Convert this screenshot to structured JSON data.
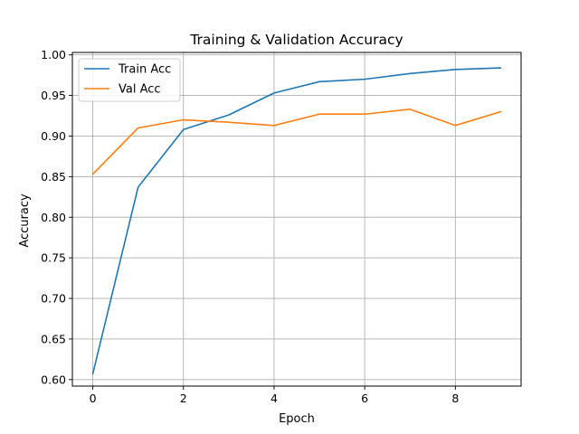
{
  "chart_data": {
    "type": "line",
    "title": "Training & Validation Accuracy",
    "xlabel": "Epoch",
    "ylabel": "Accuracy",
    "x": [
      0,
      1,
      2,
      3,
      4,
      5,
      6,
      7,
      8,
      9
    ],
    "xlim": [
      -0.45,
      9.45
    ],
    "ylim": [
      0.592,
      1.003
    ],
    "xticks": [
      0,
      2,
      4,
      6,
      8
    ],
    "yticks": [
      0.6,
      0.65,
      0.7,
      0.75,
      0.8,
      0.85,
      0.9,
      0.95,
      1.0
    ],
    "grid": true,
    "legend_position": "top-left",
    "series": [
      {
        "name": "Train Acc",
        "color": "#1f77b4",
        "values": [
          0.607,
          0.837,
          0.908,
          0.926,
          0.953,
          0.967,
          0.97,
          0.977,
          0.982,
          0.984
        ]
      },
      {
        "name": "Val Acc",
        "color": "#ff7f0e",
        "values": [
          0.853,
          0.91,
          0.92,
          0.917,
          0.913,
          0.927,
          0.927,
          0.933,
          0.913,
          0.93
        ]
      }
    ]
  }
}
